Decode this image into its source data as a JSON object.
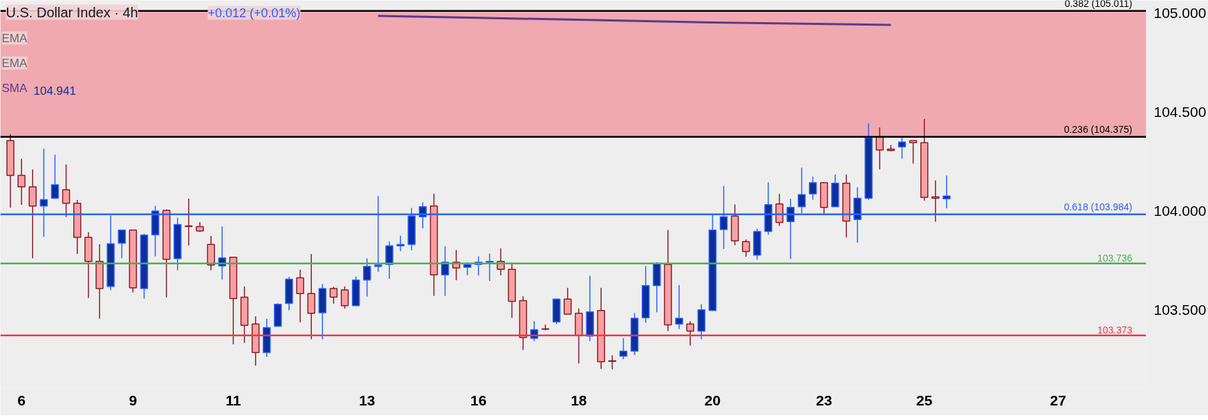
{
  "chart_data": {
    "type": "candlestick",
    "title": "U.S. Dollar Index · 4h",
    "subtitle": "+0.012 (+0.01%)",
    "annotations": [
      "EMA",
      "EMA",
      "104.941"
    ],
    "categories": [
      null,
      "6",
      null,
      null,
      null,
      null,
      null,
      null,
      null,
      null,
      null,
      "9",
      null,
      null,
      null,
      null,
      null,
      null,
      null,
      null,
      "11",
      null,
      null,
      null,
      null,
      null,
      null,
      null,
      null,
      null,
      null,
      null,
      "13",
      null,
      null,
      null,
      null,
      null,
      null,
      null,
      null,
      null,
      "16",
      null,
      null,
      null,
      null,
      null,
      null,
      null,
      null,
      "18",
      null,
      null,
      null,
      null,
      null,
      null,
      null,
      null,
      null,
      null,
      null,
      "20",
      null,
      null,
      null,
      null,
      null,
      null,
      null,
      null,
      null,
      "23",
      null,
      null,
      null,
      null,
      null,
      null,
      null,
      null,
      "25",
      null,
      null,
      null,
      null,
      null,
      null,
      null,
      null,
      null,
      null,
      null,
      "27",
      null,
      null,
      null,
      null,
      null,
      null,
      null
    ],
    "ohlc": [
      [
        104.356,
        104.388,
        104.017,
        104.18
      ],
      [
        104.18,
        104.264,
        104.032,
        104.123
      ],
      [
        104.123,
        104.21,
        103.762,
        104.026
      ],
      [
        104.026,
        104.316,
        103.87,
        104.058
      ],
      [
        104.065,
        104.285,
        104.062,
        104.133
      ],
      [
        104.108,
        104.235,
        103.971,
        104.04
      ],
      [
        104.04,
        104.056,
        103.784,
        103.868
      ],
      [
        103.868,
        103.894,
        103.561,
        103.746
      ],
      [
        103.746,
        103.833,
        103.457,
        103.609
      ],
      [
        103.62,
        103.978,
        103.601,
        103.835
      ],
      [
        103.838,
        103.904,
        103.762,
        103.904
      ],
      [
        103.904,
        103.904,
        103.59,
        103.613
      ],
      [
        103.609,
        103.886,
        103.558,
        103.879
      ],
      [
        103.881,
        104.027,
        103.772,
        104.0
      ],
      [
        104.004,
        104.008,
        103.565,
        103.757
      ],
      [
        103.76,
        103.966,
        103.701,
        103.932
      ],
      [
        103.925,
        104.063,
        103.827,
        103.923
      ],
      [
        103.922,
        103.944,
        103.895,
        103.9
      ],
      [
        103.832,
        103.875,
        103.701,
        103.728
      ],
      [
        103.724,
        103.923,
        103.655,
        103.764
      ],
      [
        103.767,
        103.767,
        103.328,
        103.559
      ],
      [
        103.566,
        103.62,
        103.335,
        103.423
      ],
      [
        103.43,
        103.469,
        103.22,
        103.286
      ],
      [
        103.286,
        103.456,
        103.264,
        103.412
      ],
      [
        103.419,
        103.534,
        103.419,
        103.53
      ],
      [
        103.534,
        103.668,
        103.5,
        103.656
      ],
      [
        103.663,
        103.704,
        103.439,
        103.584
      ],
      [
        103.584,
        103.783,
        103.353,
        103.484
      ],
      [
        103.487,
        103.632,
        103.353,
        103.609
      ],
      [
        103.609,
        103.618,
        103.533,
        103.566
      ],
      [
        103.602,
        103.62,
        103.508,
        103.523
      ],
      [
        103.523,
        103.67,
        103.523,
        103.652
      ],
      [
        103.652,
        103.761,
        103.569,
        103.721
      ],
      [
        103.721,
        104.076,
        103.694,
        103.728
      ],
      [
        103.731,
        103.847,
        103.658,
        103.825
      ],
      [
        103.825,
        103.876,
        103.798,
        103.832
      ],
      [
        103.832,
        104.016,
        103.802,
        103.975
      ],
      [
        103.972,
        104.045,
        103.913,
        104.022
      ],
      [
        104.026,
        104.088,
        103.572,
        103.678
      ],
      [
        103.678,
        103.822,
        103.572,
        103.742
      ],
      [
        103.742,
        103.804,
        103.651,
        103.713
      ],
      [
        103.717,
        103.742,
        103.676,
        103.731
      ],
      [
        103.731,
        103.772,
        103.676,
        103.742
      ],
      [
        103.742,
        103.786,
        103.648,
        103.746
      ],
      [
        103.746,
        103.812,
        103.676,
        103.706
      ],
      [
        103.706,
        103.74,
        103.461,
        103.545
      ],
      [
        103.548,
        103.57,
        103.299,
        103.362
      ],
      [
        103.358,
        103.445,
        103.344,
        103.401
      ],
      [
        103.406,
        103.427,
        103.398,
        103.404
      ],
      [
        103.441,
        103.559,
        103.43,
        103.556
      ],
      [
        103.556,
        103.613,
        103.48,
        103.48
      ],
      [
        103.484,
        103.509,
        103.231,
        103.372
      ],
      [
        103.369,
        103.674,
        103.344,
        103.491
      ],
      [
        103.498,
        103.613,
        103.203,
        103.24
      ],
      [
        103.244,
        103.272,
        103.201,
        103.242
      ],
      [
        103.268,
        103.359,
        103.253,
        103.293
      ],
      [
        103.293,
        103.485,
        103.274,
        103.459
      ],
      [
        103.462,
        103.722,
        103.436,
        103.624
      ],
      [
        103.624,
        103.742,
        103.49,
        103.735
      ],
      [
        103.731,
        103.905,
        103.394,
        103.426
      ],
      [
        103.43,
        103.627,
        103.405,
        103.459
      ],
      [
        103.43,
        103.444,
        103.321,
        103.394
      ],
      [
        103.394,
        103.53,
        103.353,
        103.502
      ],
      [
        103.498,
        103.983,
        103.498,
        103.904
      ],
      [
        103.907,
        104.127,
        103.809,
        103.972
      ],
      [
        103.975,
        104.034,
        103.828,
        103.85
      ],
      [
        103.846,
        103.857,
        103.77,
        103.796
      ],
      [
        103.778,
        103.911,
        103.755,
        103.897
      ],
      [
        103.897,
        104.145,
        103.881,
        104.033
      ],
      [
        104.036,
        104.087,
        103.925,
        103.943
      ],
      [
        103.947,
        104.062,
        103.759,
        104.019
      ],
      [
        104.022,
        104.22,
        103.99,
        104.083
      ],
      [
        104.087,
        104.174,
        104.058,
        104.144
      ],
      [
        104.144,
        104.144,
        103.983,
        104.019
      ],
      [
        104.022,
        104.185,
        104.022,
        104.141
      ],
      [
        104.141,
        104.185,
        103.867,
        103.95
      ],
      [
        103.958,
        104.12,
        103.841,
        104.065
      ],
      [
        104.065,
        104.443,
        104.057,
        104.37
      ],
      [
        104.374,
        104.422,
        104.211,
        104.309
      ],
      [
        104.313,
        104.334,
        104.302,
        104.306
      ],
      [
        104.324,
        104.37,
        104.265,
        104.349
      ],
      [
        104.356,
        104.356,
        104.24,
        104.345
      ],
      [
        104.345,
        104.465,
        104.053,
        104.069
      ],
      [
        104.072,
        104.155,
        103.946,
        104.065
      ],
      [
        104.062,
        104.18,
        104.014,
        104.076
      ],
      null,
      null,
      null,
      null,
      null,
      null,
      null,
      null,
      null,
      null,
      null,
      null,
      null,
      null,
      null,
      null,
      null
    ],
    "colors": [
      "#f7a1a4",
      "#f7a1a4",
      "#f7a1a4",
      "#0d2f9b",
      "#0d2f9b",
      "#f7a1a4",
      "#f7a1a4",
      "#f7a1a4",
      "#f7a1a4",
      "#0d2f9b",
      "#0d2f9b",
      "#f7a1a4",
      "#0d2f9b",
      "#0d2f9b",
      "#f7a1a4",
      "#0d2f9b",
      "#f7a1a4",
      "#f7a1a4",
      "#f7a1a4",
      "#0d2f9b",
      "#f7a1a4",
      "#f7a1a4",
      "#f7a1a4",
      "#0d2f9b",
      "#0d2f9b",
      "#0d2f9b",
      "#f7a1a4",
      "#f7a1a4",
      "#0d2f9b",
      "#f7a1a4",
      "#f7a1a4",
      "#0d2f9b",
      "#0d2f9b",
      "#0d2f9b",
      "#0d2f9b",
      "#0d2f9b",
      "#0d2f9b",
      "#0d2f9b",
      "#f7a1a4",
      "#0d2f9b",
      "#f7a1a4",
      "#0d2f9b",
      "#0d2f9b",
      "#0d2f9b",
      "#f7a1a4",
      "#f7a1a4",
      "#f7a1a4",
      "#0d2f9b",
      "#f7a1a4",
      "#0d2f9b",
      "#f7a1a4",
      "#f7a1a4",
      "#0d2f9b",
      "#f7a1a4",
      "#f7a1a4",
      "#0d2f9b",
      "#0d2f9b",
      "#0d2f9b",
      "#0d2f9b",
      "#f7a1a4",
      "#0d2f9b",
      "#f7a1a4",
      "#0d2f9b",
      "#0d2f9b",
      "#0d2f9b",
      "#f7a1a4",
      "#f7a1a4",
      "#0d2f9b",
      "#0d2f9b",
      "#f7a1a4",
      "#0d2f9b",
      "#0d2f9b",
      "#0d2f9b",
      "#f7a1a4",
      "#0d2f9b",
      "#f7a1a4",
      "#0d2f9b",
      "#0d2f9b",
      "#f7a1a4",
      "#f7a1a4",
      "#0d2f9b",
      "#f7a1a4",
      "#f7a1a4",
      "#f7a1a4",
      "#0d2f9b",
      null,
      null,
      null,
      null,
      null,
      null,
      null,
      null,
      null,
      null,
      null,
      null,
      null,
      null,
      null,
      null,
      null
    ],
    "series": [
      {
        "type": "line",
        "name": "SMA",
        "color": "#5b3a8a",
        "values": [
          null,
          null,
          null,
          null,
          null,
          null,
          null,
          null,
          null,
          null,
          null,
          null,
          null,
          null,
          null,
          null,
          null,
          null,
          null,
          null,
          null,
          null,
          null,
          null,
          null,
          null,
          null,
          null,
          null,
          null,
          null,
          null,
          null,
          104.985,
          null,
          null,
          null,
          null,
          null,
          null,
          null,
          null,
          104.976,
          null,
          null,
          null,
          null,
          null,
          null,
          null,
          null,
          null,
          null,
          null,
          null,
          null,
          null,
          null,
          null,
          null,
          null,
          null,
          null,
          104.952,
          null,
          null,
          null,
          null,
          null,
          null,
          null,
          null,
          null,
          null,
          null,
          null,
          null,
          null,
          null,
          104.94,
          null,
          null,
          null,
          null,
          null,
          null,
          null,
          null,
          null,
          null,
          null,
          null,
          null,
          null,
          null,
          null,
          null,
          null,
          null,
          null,
          null,
          null
        ]
      }
    ],
    "ylim": [
      103.108,
      105.064
    ],
    "yticks": [
      {
        "value": 103.5,
        "label": "103.500"
      },
      {
        "value": 104.0,
        "label": "104.000"
      },
      {
        "value": 104.5,
        "label": "104.500"
      },
      {
        "value": 105.0,
        "label": "105.000"
      }
    ],
    "bands": [
      {
        "axis": "y",
        "from": 104.375,
        "to": 105.011,
        "color": "#f0a9b0"
      }
    ],
    "ref_lines": [
      {
        "axis": "y",
        "value": 105.011,
        "label": "0.382 (105.011)",
        "color": "#000000"
      },
      {
        "axis": "y",
        "value": 104.375,
        "label": "0.236 (104.375)",
        "color": "#000000"
      },
      {
        "axis": "y",
        "value": 103.984,
        "label": "0.618 (103.984)",
        "color": "#2962ff"
      },
      {
        "axis": "y",
        "value": 103.736,
        "label": "103.736",
        "color": "#4caf50"
      },
      {
        "axis": "y",
        "value": 103.373,
        "label": "103.373",
        "color": "#f23645"
      }
    ],
    "grid": false,
    "legend": false
  }
}
